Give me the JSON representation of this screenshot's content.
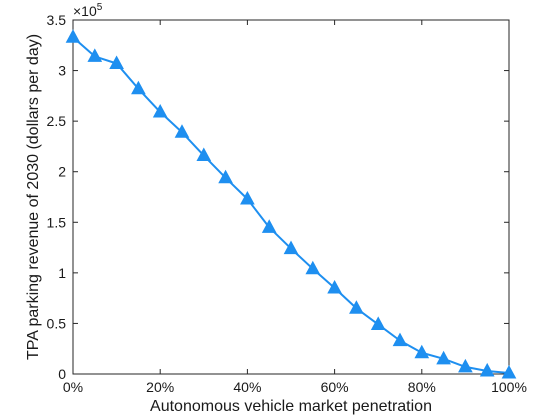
{
  "chart_data": {
    "type": "line",
    "title": "",
    "xlabel": "Autonomous vehicle market penetration",
    "ylabel": "TPA parking revenue of 2030 (dollars per day)",
    "y_multiplier_base": "×10",
    "y_multiplier_exp": "5",
    "xlim": [
      0,
      1
    ],
    "ylim": [
      0,
      3.5
    ],
    "x_ticks": [
      0,
      0.2,
      0.4,
      0.6,
      0.8,
      1.0
    ],
    "x_tick_labels": [
      "0%",
      "20%",
      "40%",
      "60%",
      "80%",
      "100%"
    ],
    "y_ticks": [
      0,
      0.5,
      1,
      1.5,
      2,
      2.5,
      3,
      3.5
    ],
    "y_tick_labels": [
      "0",
      "0.5",
      "1",
      "1.5",
      "2",
      "2.5",
      "3",
      "3.5"
    ],
    "grid": false,
    "series": [
      {
        "color": "#1e8ff0",
        "marker": "triangle",
        "x": [
          0,
          0.05,
          0.1,
          0.15,
          0.2,
          0.25,
          0.3,
          0.35,
          0.4,
          0.45,
          0.5,
          0.55,
          0.6,
          0.65,
          0.7,
          0.75,
          0.8,
          0.85,
          0.9,
          0.95,
          1.0
        ],
        "y": [
          3.33,
          3.14,
          3.07,
          2.82,
          2.59,
          2.39,
          2.16,
          1.94,
          1.73,
          1.45,
          1.24,
          1.04,
          0.85,
          0.65,
          0.49,
          0.33,
          0.21,
          0.15,
          0.07,
          0.03,
          0.01
        ]
      }
    ]
  }
}
